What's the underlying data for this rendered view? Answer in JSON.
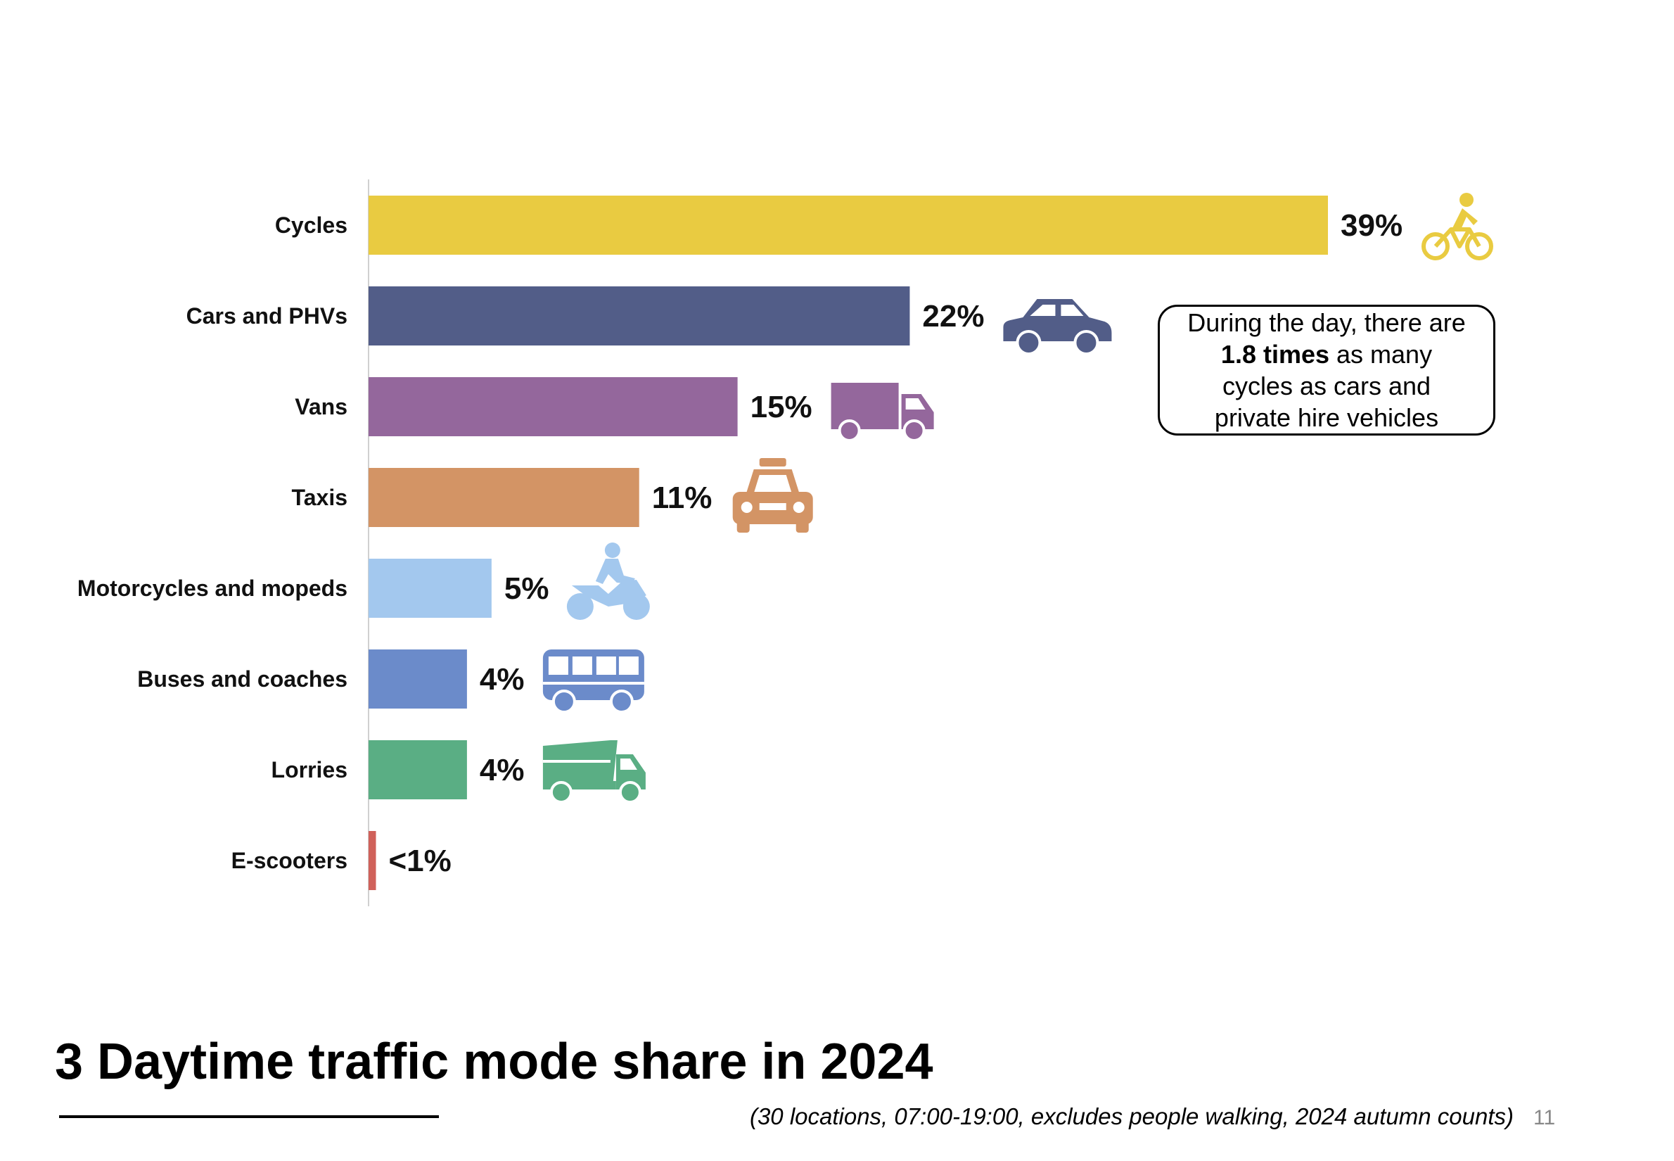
{
  "chart_data": {
    "type": "bar",
    "orientation": "horizontal",
    "title": "3 Daytime traffic mode share in 2024",
    "xlabel": "",
    "ylabel": "",
    "xlim": [
      0,
      39
    ],
    "grid": false,
    "categories": [
      "Cycles",
      "Cars and PHVs",
      "Vans",
      "Taxis",
      "Motorcycles and mopeds",
      "Buses and coaches",
      "Lorries",
      "E-scooters"
    ],
    "values": [
      39,
      22,
      15,
      11,
      5,
      4,
      4,
      0.3
    ],
    "value_labels": [
      "39%",
      "22%",
      "15%",
      "11%",
      "5%",
      "4%",
      "4%",
      "<1%"
    ],
    "colors": [
      "#E9CB41",
      "#525D88",
      "#94679C",
      "#D39465",
      "#A3C8EE",
      "#6B8BCA",
      "#5AAE84",
      "#D0615A"
    ],
    "icons": [
      "bicycle-icon",
      "car-icon",
      "van-icon",
      "taxi-icon",
      "motorcycle-icon",
      "bus-icon",
      "lorry-icon",
      ""
    ]
  },
  "callout": {
    "line1": "During the day, there are",
    "bold": "1.8 times",
    "rest": " as many",
    "line3": "cycles as cars and",
    "line4": "private hire vehicles"
  },
  "page": {
    "title": "3 Daytime traffic mode share in 2024",
    "footnote": "(30 locations, 07:00-19:00, excludes people walking, 2024 autumn counts)",
    "number": "11"
  }
}
